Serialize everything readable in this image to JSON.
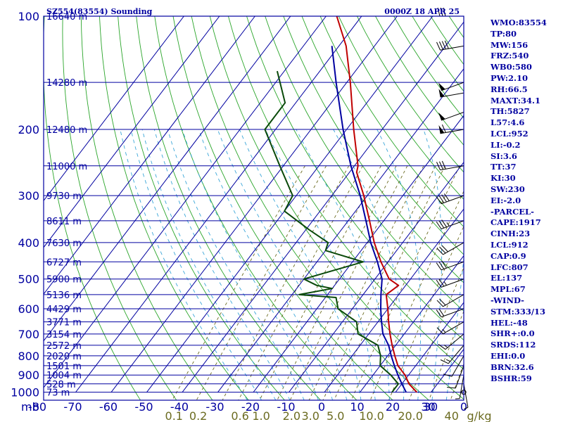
{
  "header": {
    "station": "SZ554(83554) Sounding",
    "datetime": "0000Z 18 APR 25"
  },
  "chart_data": {
    "type": "skew-t",
    "pressure_axis": {
      "unit": "mb",
      "ticks": [
        "100",
        "200",
        "300",
        "400",
        "500",
        "600",
        "700",
        "800",
        "900",
        "1000"
      ]
    },
    "temperature_axis": {
      "ticks": [
        "-80",
        "-70",
        "-60",
        "-50",
        "-40",
        "-30",
        "-20",
        "-10",
        "0",
        "10",
        "20",
        "30"
      ]
    },
    "mixing_ratio_axis": {
      "unit": "g/kg",
      "ticks": [
        "0.1",
        "0.2",
        "0.6",
        "1.0",
        "2.0",
        "3.0",
        "5.0",
        "10.0",
        "20.0",
        "40"
      ]
    },
    "wind_axis_ticks": [
      "30",
      "0"
    ],
    "height_labels": [
      {
        "p": 100,
        "label": "16640 m"
      },
      {
        "p": 150,
        "label": "14280 m"
      },
      {
        "p": 200,
        "label": "12480 m"
      },
      {
        "p": 250,
        "label": "11000 m"
      },
      {
        "p": 300,
        "label": "9730 m"
      },
      {
        "p": 350,
        "label": "8611 m"
      },
      {
        "p": 400,
        "label": "7630 m"
      },
      {
        "p": 450,
        "label": "6727 m"
      },
      {
        "p": 500,
        "label": "5900 m"
      },
      {
        "p": 550,
        "label": "5136 m"
      },
      {
        "p": 600,
        "label": "4429 m"
      },
      {
        "p": 650,
        "label": "3771 m"
      },
      {
        "p": 700,
        "label": "3154 m"
      },
      {
        "p": 750,
        "label": "2572 m"
      },
      {
        "p": 800,
        "label": "2020 m"
      },
      {
        "p": 850,
        "label": "1501 m"
      },
      {
        "p": 900,
        "label": "1004 m"
      },
      {
        "p": 950,
        "label": "528 m"
      },
      {
        "p": 1000,
        "label": "73 m"
      }
    ],
    "series": [
      {
        "color": "#c00000",
        "points": [
          [
            1000,
            26
          ],
          [
            950,
            22
          ],
          [
            900,
            19
          ],
          [
            850,
            15
          ],
          [
            800,
            12
          ],
          [
            750,
            9
          ],
          [
            700,
            6
          ],
          [
            650,
            3
          ],
          [
            600,
            0
          ],
          [
            550,
            -3.5
          ],
          [
            520,
            -2
          ],
          [
            500,
            -6
          ],
          [
            450,
            -12
          ],
          [
            400,
            -18
          ],
          [
            350,
            -24
          ],
          [
            300,
            -31
          ],
          [
            260,
            -38
          ],
          [
            250,
            -39
          ],
          [
            200,
            -48
          ],
          [
            150,
            -59
          ],
          [
            120,
            -68
          ],
          [
            100,
            -77
          ]
        ]
      },
      {
        "color": "#0a4a0a",
        "points": [
          [
            1000,
            19
          ],
          [
            950,
            19
          ],
          [
            900,
            15
          ],
          [
            850,
            10
          ],
          [
            800,
            8
          ],
          [
            750,
            5
          ],
          [
            700,
            -3
          ],
          [
            650,
            -6
          ],
          [
            600,
            -14
          ],
          [
            560,
            -17
          ],
          [
            550,
            -28
          ],
          [
            530,
            -20
          ],
          [
            520,
            -25
          ],
          [
            500,
            -30
          ],
          [
            450,
            -17
          ],
          [
            420,
            -30
          ],
          [
            400,
            -31
          ],
          [
            370,
            -39
          ],
          [
            330,
            -50
          ],
          [
            300,
            -51
          ],
          [
            250,
            -61
          ],
          [
            200,
            -73
          ],
          [
            170,
            -73
          ],
          [
            140,
            -82
          ]
        ]
      },
      {
        "color": "#0000a0",
        "points": [
          [
            1000,
            23
          ],
          [
            950,
            20
          ],
          [
            900,
            17
          ],
          [
            850,
            14
          ],
          [
            800,
            11
          ],
          [
            750,
            8
          ],
          [
            700,
            4
          ],
          [
            650,
            1
          ],
          [
            600,
            -2
          ],
          [
            550,
            -5
          ],
          [
            500,
            -8
          ],
          [
            450,
            -13
          ],
          [
            400,
            -19
          ],
          [
            350,
            -25
          ],
          [
            300,
            -32
          ],
          [
            250,
            -41
          ],
          [
            200,
            -51
          ],
          [
            150,
            -63
          ],
          [
            120,
            -72
          ]
        ]
      }
    ],
    "winds": [
      {
        "p": 1000,
        "dir": 180,
        "spd": 0
      },
      {
        "p": 950,
        "dir": 170,
        "spd": 5
      },
      {
        "p": 900,
        "dir": 190,
        "spd": 5
      },
      {
        "p": 850,
        "dir": 200,
        "spd": 10
      },
      {
        "p": 800,
        "dir": 210,
        "spd": 10
      },
      {
        "p": 750,
        "dir": 220,
        "spd": 15
      },
      {
        "p": 700,
        "dir": 230,
        "spd": 15
      },
      {
        "p": 650,
        "dir": 240,
        "spd": 15
      },
      {
        "p": 600,
        "dir": 250,
        "spd": 20
      },
      {
        "p": 550,
        "dir": 240,
        "spd": 20
      },
      {
        "p": 500,
        "dir": 250,
        "spd": 25
      },
      {
        "p": 450,
        "dir": 250,
        "spd": 30
      },
      {
        "p": 400,
        "dir": 240,
        "spd": 30
      },
      {
        "p": 350,
        "dir": 250,
        "spd": 35
      },
      {
        "p": 300,
        "dir": 250,
        "spd": 40
      },
      {
        "p": 250,
        "dir": 260,
        "spd": 30
      },
      {
        "p": 200,
        "dir": 260,
        "spd": 60
      },
      {
        "p": 180,
        "dir": 250,
        "spd": 50
      },
      {
        "p": 160,
        "dir": 260,
        "spd": 50
      },
      {
        "p": 150,
        "dir": 250,
        "spd": 50
      },
      {
        "p": 120,
        "dir": 260,
        "spd": 40
      },
      {
        "p": 100,
        "dir": 270,
        "spd": 30
      }
    ]
  },
  "sidebar": {
    "lines": [
      "WMO:83554",
      "TP:80",
      "MW:156",
      "FRZ:540",
      "WB0:580",
      "PW:2.10",
      "RH:66.5",
      "MAXT:34.1",
      "TH:5827",
      "L57:4.6",
      "LCL:952",
      "LI:-0.2",
      "SI:3.6",
      "TT:37",
      "KI:30",
      "SW:230",
      "EI:-2.0",
      "-PARCEL-",
      "CAPE:1917",
      "CINH:23",
      "LCL:912",
      "CAP:0.9",
      "LFC:807",
      "EL:137",
      "MPL:67",
      "-WIND-",
      "STM:333/13",
      "HEL:-48",
      "SHR+:0.0",
      "SRDS:112",
      "EHI:0.0",
      "BRN:32.6",
      "BSHR:59"
    ]
  }
}
